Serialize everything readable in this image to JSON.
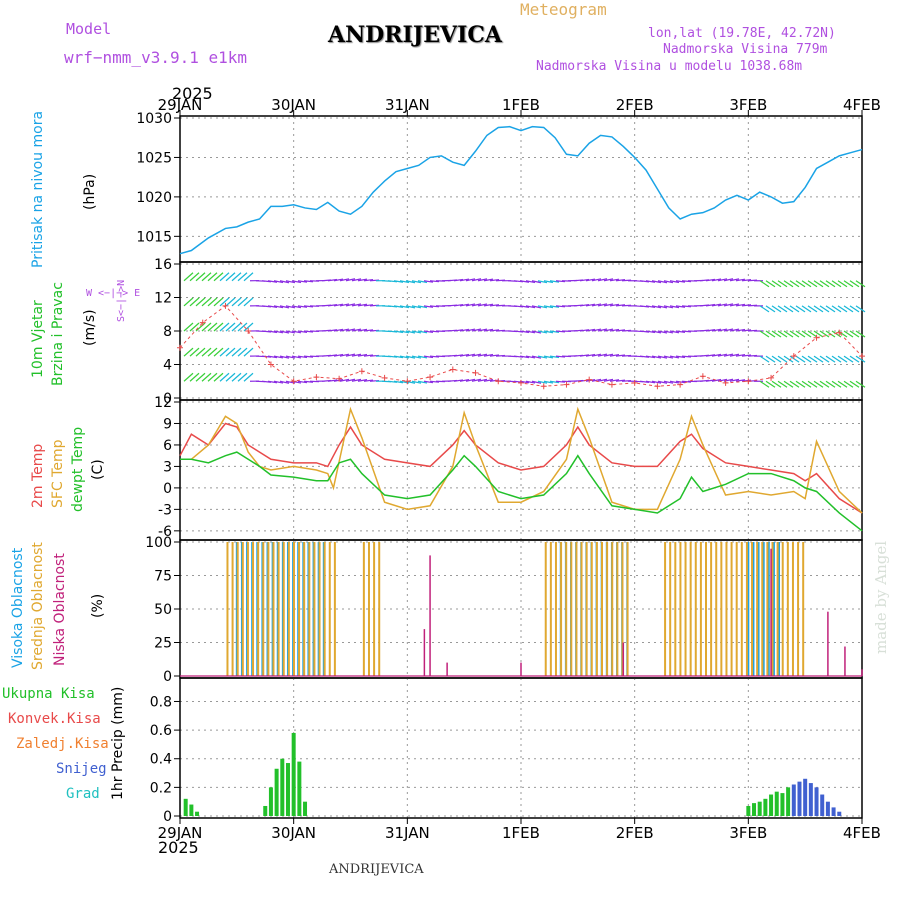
{
  "header": {
    "model_label": "Model",
    "model_name": "wrf−nmm_v3.9.1  e1km",
    "title": "Meteogram",
    "station": "ANDRIJEVICA",
    "lonlat": "lon,lat (19.78E, 42.72N)",
    "altitude": "Nadmorska Visina 779m",
    "model_altitude": "Nadmorska Visina u modelu 1038.68m",
    "year_top": "2025",
    "year_bottom": "2025",
    "footer_station": "ANDRIJEVICA",
    "watermark": "made by Angel"
  },
  "colors": {
    "pressure": "#1aa3e6",
    "temp2m": "#e84a4a",
    "sfc": "#e0a830",
    "dewpt": "#22c02a",
    "high_cloud": "#1aa3e6",
    "mid_cloud": "#e0a830",
    "low_cloud": "#c0207a",
    "wind_purple": "#8a2be2",
    "wind_cyan": "#1ab8d8",
    "wind_green": "#3ad03a",
    "precip_green": "#22c02a",
    "precip_blue": "#4060d0",
    "gust_red": "#e84a4a"
  },
  "labels": {
    "pressure_name": "Pritisak na nivou mora",
    "pressure_unit": "(hPa)",
    "wind_name1": "10m Vjetar",
    "wind_name2": "Brzina i Pravac",
    "wind_unit": "(m/s)",
    "wind_compass": "W  <−|−>  E",
    "wind_compass_v": "S<−|−>N",
    "temp_2m": "2m Temp",
    "temp_sfc": "SFC Temp",
    "temp_dew": "dewpt Temp",
    "temp_unit": "(C)",
    "cloud_high": "Visoka Oblacnost",
    "cloud_mid": "Srednja Oblacnost",
    "cloud_low": "Niska Oblacnost",
    "cloud_unit": "(%)",
    "precip_total": "Ukupna Kisa",
    "precip_conv": "Konvek.Kisa",
    "precip_frz": "Zaledj.Kisa",
    "precip_snow": "Snijeg",
    "precip_grad": "Grad",
    "precip_axis": "1hr Precip (mm)"
  },
  "chart_data": {
    "type": "line",
    "x_labels": [
      "29JAN",
      "30JAN",
      "31JAN",
      "1FEB",
      "2FEB",
      "3FEB",
      "4FEB"
    ],
    "panels": [
      {
        "name": "pressure",
        "ylim": [
          1012,
          1030
        ],
        "yticks": [
          1015,
          1020,
          1025,
          1030
        ],
        "series": [
          {
            "name": "Pritisak na nivou mora",
            "color_key": "pressure",
            "x": [
              0,
              0.1,
              0.25,
              0.4,
              0.5,
              0.6,
              0.7,
              0.8,
              0.9,
              1.0,
              1.1,
              1.2,
              1.3,
              1.4,
              1.5,
              1.6,
              1.7,
              1.8,
              1.9,
              2.0,
              2.1,
              2.2,
              2.3,
              2.4,
              2.5,
              2.6,
              2.7,
              2.8,
              2.9,
              3.0,
              3.1,
              3.2,
              3.3,
              3.4,
              3.5,
              3.6,
              3.7,
              3.8,
              3.9,
              4.0,
              4.1,
              4.2,
              4.3,
              4.4,
              4.5,
              4.6,
              4.7,
              4.8,
              4.9,
              5.0,
              5.1,
              5.2,
              5.3,
              5.4,
              5.5,
              5.6,
              5.7,
              5.8,
              5.9,
              6.0
            ],
            "y": [
              1012.8,
              1013.2,
              1014.8,
              1016.0,
              1016.2,
              1016.8,
              1017.2,
              1018.8,
              1018.8,
              1019.0,
              1018.6,
              1018.4,
              1019.3,
              1018.2,
              1017.8,
              1018.8,
              1020.6,
              1022.0,
              1023.2,
              1023.6,
              1024.0,
              1025.0,
              1025.2,
              1024.4,
              1024.0,
              1025.8,
              1027.8,
              1028.8,
              1028.9,
              1028.4,
              1028.9,
              1028.8,
              1027.5,
              1025.4,
              1025.2,
              1026.8,
              1027.8,
              1027.6,
              1026.4,
              1025.0,
              1023.4,
              1021.0,
              1018.6,
              1017.2,
              1017.8,
              1018.0,
              1018.6,
              1019.6,
              1020.2,
              1019.6,
              1020.6,
              1020.0,
              1019.2,
              1019.4,
              1021.2,
              1023.6,
              1024.4,
              1025.2,
              1025.6,
              1026.0
            ]
          }
        ]
      },
      {
        "name": "wind",
        "ylim": [
          0,
          16
        ],
        "yticks": [
          0,
          4,
          8,
          12,
          16
        ],
        "series": [
          {
            "name": "wind speed",
            "color_key": "wind_purple",
            "rows": [
              14,
              11,
              8,
              5,
              2
            ]
          },
          {
            "name": "gust",
            "color_key": "gust_red",
            "x": [
              0,
              0.2,
              0.4,
              0.6,
              0.8,
              1.0,
              1.2,
              1.4,
              1.6,
              1.8,
              2.0,
              2.2,
              2.4,
              2.6,
              2.8,
              3.0,
              3.2,
              3.4,
              3.6,
              3.8,
              4.0,
              4.2,
              4.4,
              4.6,
              4.8,
              5.0,
              5.2,
              5.4,
              5.6,
              5.8,
              6.0
            ],
            "y": [
              6,
              9,
              11,
              8,
              4,
              2,
              2.5,
              2.3,
              3.2,
              2.4,
              2,
              2.5,
              3.4,
              3,
              2,
              1.8,
              1.4,
              1.6,
              2.2,
              1.6,
              1.8,
              1.4,
              1.6,
              2.6,
              1.8,
              2,
              2.4,
              5,
              7.2,
              7.8,
              5
            ]
          }
        ]
      },
      {
        "name": "temperature",
        "ylim": [
          -7,
          12
        ],
        "yticks": [
          -6,
          -3,
          0,
          3,
          6,
          9,
          12
        ],
        "series": [
          {
            "name": "2m Temp",
            "color_key": "temp2m",
            "x": [
              0,
              0.1,
              0.25,
              0.4,
              0.5,
              0.6,
              0.7,
              0.8,
              1.0,
              1.2,
              1.3,
              1.4,
              1.5,
              1.6,
              1.8,
              2.0,
              2.2,
              2.4,
              2.5,
              2.6,
              2.8,
              3.0,
              3.2,
              3.4,
              3.5,
              3.6,
              3.8,
              4.0,
              4.2,
              4.4,
              4.5,
              4.6,
              4.8,
              5.0,
              5.2,
              5.4,
              5.5,
              5.6,
              5.8,
              6.0
            ],
            "y": [
              4.5,
              7.5,
              6,
              9,
              8.5,
              6,
              5,
              4,
              3.5,
              3.5,
              3,
              6,
              8.5,
              6,
              4,
              3.5,
              3,
              6,
              8,
              6,
              3.5,
              2.5,
              3,
              6,
              8.5,
              6,
              3.5,
              3,
              3,
              6.5,
              7.5,
              5.5,
              3.5,
              3,
              2.5,
              2,
              1,
              2,
              -1.5,
              -3.5
            ]
          },
          {
            "name": "SFC Temp",
            "color_key": "sfc",
            "x": [
              0,
              0.1,
              0.25,
              0.4,
              0.5,
              0.6,
              0.7,
              0.8,
              1.0,
              1.2,
              1.3,
              1.35,
              1.5,
              1.6,
              1.8,
              2.0,
              2.2,
              2.4,
              2.5,
              2.6,
              2.8,
              3.0,
              3.2,
              3.4,
              3.5,
              3.6,
              3.8,
              4.0,
              4.2,
              4.4,
              4.5,
              4.6,
              4.8,
              5.0,
              5.2,
              5.4,
              5.5,
              5.6,
              5.8,
              6.0
            ],
            "y": [
              4,
              4,
              6,
              10,
              9,
              5,
              3,
              2.5,
              3,
              2.5,
              2,
              0,
              11,
              7,
              -2,
              -3,
              -2.5,
              3,
              10.5,
              6,
              -2,
              -2,
              -0.5,
              4,
              11,
              7,
              -2,
              -3,
              -3,
              4,
              10,
              6,
              -1,
              -0.5,
              -1,
              -0.5,
              -1.5,
              6.5,
              -0.5,
              -3.5
            ]
          },
          {
            "name": "dewpt Temp",
            "color_key": "dewpt",
            "x": [
              0,
              0.1,
              0.25,
              0.4,
              0.5,
              0.6,
              0.7,
              0.8,
              1.0,
              1.2,
              1.3,
              1.4,
              1.5,
              1.6,
              1.8,
              2.0,
              2.2,
              2.4,
              2.5,
              2.6,
              2.8,
              3.0,
              3.2,
              3.4,
              3.5,
              3.6,
              3.8,
              4.0,
              4.2,
              4.4,
              4.5,
              4.6,
              4.8,
              5.0,
              5.2,
              5.4,
              5.5,
              5.6,
              5.8,
              6.0
            ],
            "y": [
              4,
              4,
              3.5,
              4.5,
              5,
              4,
              3,
              1.8,
              1.5,
              1,
              1,
              3.5,
              4,
              2,
              -1,
              -1.5,
              -1,
              2.5,
              4.5,
              3,
              -0.5,
              -1.5,
              -1,
              2,
              4.5,
              2,
              -2.5,
              -3,
              -3.5,
              -1.5,
              1.5,
              -0.5,
              0.5,
              2,
              2,
              1,
              0,
              -0.5,
              -3.5,
              -6
            ]
          }
        ]
      },
      {
        "name": "clouds",
        "ylim": [
          0,
          100
        ],
        "yticks": [
          0,
          25,
          50,
          75,
          100
        ],
        "series": [
          {
            "name": "Visoka Oblacnost",
            "color_key": "high_cloud",
            "segments": [
              [
                0.5,
                1.3
              ],
              [
                3.35,
                3.95
              ],
              [
                5.0,
                5.3
              ]
            ],
            "value": 100
          },
          {
            "name": "Srednja Oblacnost",
            "color_key": "mid_cloud",
            "segments": [
              [
                0.4,
                1.35
              ],
              [
                1.6,
                1.75
              ],
              [
                3.2,
                3.95
              ],
              [
                4.25,
                5.5
              ]
            ],
            "value": 100
          },
          {
            "name": "Niska Oblacnost",
            "color_key": "low_cloud",
            "spikes": [
              [
                2.2,
                90
              ],
              [
                2.15,
                35
              ],
              [
                2.35,
                10
              ],
              [
                3.0,
                10
              ],
              [
                3.9,
                25
              ],
              [
                5.2,
                95
              ],
              [
                5.7,
                48
              ],
              [
                5.85,
                22
              ],
              [
                6.0,
                5
              ]
            ]
          }
        ]
      },
      {
        "name": "precip",
        "ylim": [
          0,
          0.95
        ],
        "yticks": [
          0,
          0.2,
          0.4,
          0.6,
          0.8
        ],
        "series": [
          {
            "name": "Ukupna Kisa",
            "color_key": "precip_green",
            "x": [
              0.05,
              0.1,
              0.15,
              0.75,
              0.8,
              0.85,
              0.9,
              0.95,
              1.0,
              1.05,
              1.1,
              5.0,
              5.05,
              5.1,
              5.15,
              5.2,
              5.25,
              5.3,
              5.35
            ],
            "y": [
              0.12,
              0.08,
              0.03,
              0.07,
              0.2,
              0.33,
              0.4,
              0.37,
              0.58,
              0.38,
              0.1,
              0.07,
              0.09,
              0.1,
              0.12,
              0.15,
              0.17,
              0.16,
              0.2
            ]
          },
          {
            "name": "Snijeg",
            "color_key": "precip_blue",
            "x": [
              5.4,
              5.45,
              5.5,
              5.55,
              5.6,
              5.65,
              5.7,
              5.75,
              5.8
            ],
            "y": [
              0.22,
              0.24,
              0.26,
              0.23,
              0.2,
              0.15,
              0.1,
              0.06,
              0.03
            ]
          }
        ]
      }
    ]
  }
}
